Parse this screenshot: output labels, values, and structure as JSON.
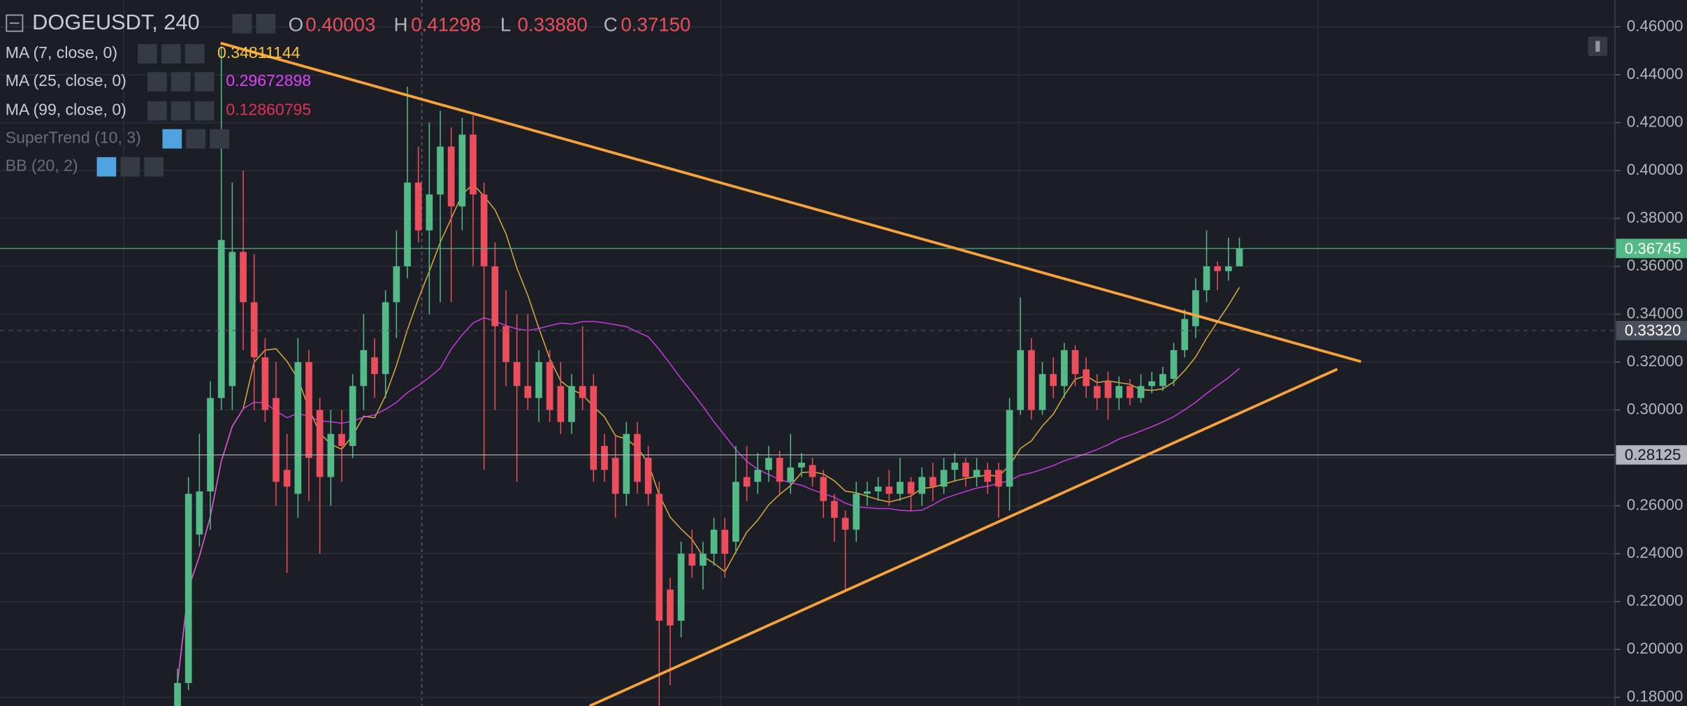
{
  "header": {
    "symbol": "DOGEUSDT, 240",
    "ohlc": [
      {
        "label": "O",
        "value": "0.40003"
      },
      {
        "label": "H",
        "value": "0.41298"
      },
      {
        "label": "L",
        "value": "0.33880"
      },
      {
        "label": "C",
        "value": "0.37150"
      }
    ]
  },
  "indicators": [
    {
      "name": "MA (7, close, 0)",
      "value": "0.34811144",
      "color": "#f5c342",
      "period": 7
    },
    {
      "name": "MA (25, close, 0)",
      "value": "0.29672898",
      "color": "#e040fb",
      "period": 25
    },
    {
      "name": "MA (99, close, 0)",
      "value": "0.12860795",
      "color": "#e0305a"
    },
    {
      "name": "SuperTrend (10, 3)"
    },
    {
      "name": "BB (20, 2)"
    }
  ],
  "chart_data": {
    "type": "candlestick",
    "up_color": "#53b987",
    "down_color": "#eb4d5c",
    "open": [
      0.17,
      0.186,
      0.248,
      0.266,
      0.305,
      0.31,
      0.366,
      0.345,
      0.322,
      0.305,
      0.275,
      0.265,
      0.32,
      0.3,
      0.272,
      0.29,
      0.285,
      0.31,
      0.322,
      0.315,
      0.345,
      0.36,
      0.395,
      0.375,
      0.39,
      0.41,
      0.385,
      0.415,
      0.39,
      0.36,
      0.335,
      0.32,
      0.31,
      0.305,
      0.32,
      0.31,
      0.295,
      0.31,
      0.31,
      0.285,
      0.28,
      0.265,
      0.29,
      0.28,
      0.265,
      0.225,
      0.212,
      0.24,
      0.235,
      0.24,
      0.25,
      0.245,
      0.272,
      0.27,
      0.275,
      0.28,
      0.27,
      0.276,
      0.277,
      0.272,
      0.262,
      0.255,
      0.25,
      0.265,
      0.266,
      0.268,
      0.265,
      0.27,
      0.265,
      0.272,
      0.268,
      0.275,
      0.278,
      0.272,
      0.275,
      0.275,
      0.268,
      0.3,
      0.325,
      0.3,
      0.315,
      0.31,
      0.325,
      0.317,
      0.31,
      0.312,
      0.305,
      0.31,
      0.305,
      0.31,
      0.31,
      0.313,
      0.325,
      0.335,
      0.35,
      0.36,
      0.358,
      0.36
    ],
    "high": [
      0.192,
      0.272,
      0.29,
      0.312,
      0.452,
      0.395,
      0.4,
      0.365,
      0.33,
      0.32,
      0.29,
      0.33,
      0.325,
      0.305,
      0.3,
      0.3,
      0.315,
      0.34,
      0.33,
      0.35,
      0.375,
      0.435,
      0.41,
      0.42,
      0.425,
      0.418,
      0.422,
      0.423,
      0.395,
      0.37,
      0.35,
      0.34,
      0.34,
      0.325,
      0.325,
      0.32,
      0.315,
      0.335,
      0.315,
      0.29,
      0.29,
      0.295,
      0.295,
      0.285,
      0.27,
      0.23,
      0.245,
      0.25,
      0.245,
      0.255,
      0.255,
      0.285,
      0.285,
      0.282,
      0.285,
      0.283,
      0.29,
      0.282,
      0.28,
      0.275,
      0.265,
      0.258,
      0.27,
      0.27,
      0.272,
      0.275,
      0.28,
      0.272,
      0.276,
      0.278,
      0.28,
      0.282,
      0.28,
      0.28,
      0.278,
      0.278,
      0.305,
      0.347,
      0.33,
      0.32,
      0.322,
      0.328,
      0.327,
      0.322,
      0.315,
      0.316,
      0.314,
      0.313,
      0.315,
      0.316,
      0.318,
      0.328,
      0.342,
      0.355,
      0.375,
      0.362,
      0.372,
      0.372
    ],
    "low": [
      0.165,
      0.183,
      0.243,
      0.25,
      0.3,
      0.3,
      0.325,
      0.3,
      0.295,
      0.26,
      0.232,
      0.255,
      0.262,
      0.24,
      0.26,
      0.27,
      0.28,
      0.3,
      0.305,
      0.305,
      0.33,
      0.355,
      0.37,
      0.34,
      0.345,
      0.345,
      0.375,
      0.36,
      0.275,
      0.3,
      0.31,
      0.27,
      0.3,
      0.295,
      0.295,
      0.29,
      0.29,
      0.3,
      0.27,
      0.27,
      0.255,
      0.26,
      0.265,
      0.26,
      0.175,
      0.185,
      0.205,
      0.23,
      0.225,
      0.235,
      0.23,
      0.24,
      0.262,
      0.265,
      0.27,
      0.265,
      0.265,
      0.272,
      0.268,
      0.255,
      0.245,
      0.225,
      0.245,
      0.26,
      0.262,
      0.26,
      0.262,
      0.258,
      0.26,
      0.262,
      0.265,
      0.27,
      0.268,
      0.268,
      0.265,
      0.255,
      0.258,
      0.298,
      0.296,
      0.298,
      0.305,
      0.305,
      0.31,
      0.305,
      0.3,
      0.296,
      0.3,
      0.302,
      0.303,
      0.307,
      0.308,
      0.31,
      0.322,
      0.33,
      0.345,
      0.35,
      0.354,
      0.362
    ],
    "close": [
      0.186,
      0.265,
      0.266,
      0.305,
      0.371,
      0.366,
      0.345,
      0.322,
      0.3,
      0.27,
      0.268,
      0.32,
      0.28,
      0.272,
      0.29,
      0.285,
      0.31,
      0.325,
      0.315,
      0.345,
      0.36,
      0.395,
      0.375,
      0.39,
      0.41,
      0.385,
      0.415,
      0.39,
      0.36,
      0.335,
      0.32,
      0.31,
      0.305,
      0.32,
      0.3,
      0.295,
      0.31,
      0.305,
      0.275,
      0.275,
      0.265,
      0.29,
      0.27,
      0.265,
      0.212,
      0.21,
      0.24,
      0.235,
      0.24,
      0.25,
      0.24,
      0.27,
      0.268,
      0.275,
      0.28,
      0.27,
      0.276,
      0.278,
      0.272,
      0.262,
      0.255,
      0.25,
      0.265,
      0.266,
      0.268,
      0.265,
      0.27,
      0.265,
      0.272,
      0.268,
      0.275,
      0.278,
      0.272,
      0.275,
      0.27,
      0.268,
      0.3,
      0.325,
      0.3,
      0.315,
      0.31,
      0.325,
      0.315,
      0.31,
      0.305,
      0.305,
      0.31,
      0.305,
      0.31,
      0.312,
      0.315,
      0.325,
      0.338,
      0.35,
      0.36,
      0.358,
      0.36,
      0.36745
    ],
    "ylim": [
      0.1764,
      0.4712
    ],
    "yticks": [
      {
        "value": 0.18,
        "label": "0.18000"
      },
      {
        "value": 0.2,
        "label": "0.20000"
      },
      {
        "value": 0.22,
        "label": "0.22000"
      },
      {
        "value": 0.24,
        "label": "0.24000"
      },
      {
        "value": 0.26,
        "label": "0.26000"
      },
      {
        "value": 0.28,
        "label": "0.28000"
      },
      {
        "value": 0.3,
        "label": "0.30000"
      },
      {
        "value": 0.32,
        "label": "0.32000"
      },
      {
        "value": 0.34,
        "label": "0.34000"
      },
      {
        "value": 0.36,
        "label": "0.36000"
      },
      {
        "value": 0.38,
        "label": "0.38000"
      },
      {
        "value": 0.4,
        "label": "0.40000"
      },
      {
        "value": 0.42,
        "label": "0.42000"
      },
      {
        "value": 0.44,
        "label": "0.44000"
      },
      {
        "value": 0.46,
        "label": "0.46000"
      }
    ],
    "price_tags": [
      {
        "value": 0.36745,
        "color": "#53b987",
        "text_color": "#ffffff",
        "line": "solid"
      },
      {
        "value": 0.3332,
        "label": "0.33320",
        "color": "#4a4e5a",
        "text_color": "#ffffff",
        "line": "dashed"
      },
      {
        "value": 0.28125,
        "color": "#b2b5be",
        "text_color": "#131722",
        "line": "solid"
      }
    ],
    "grid": true
  }
}
